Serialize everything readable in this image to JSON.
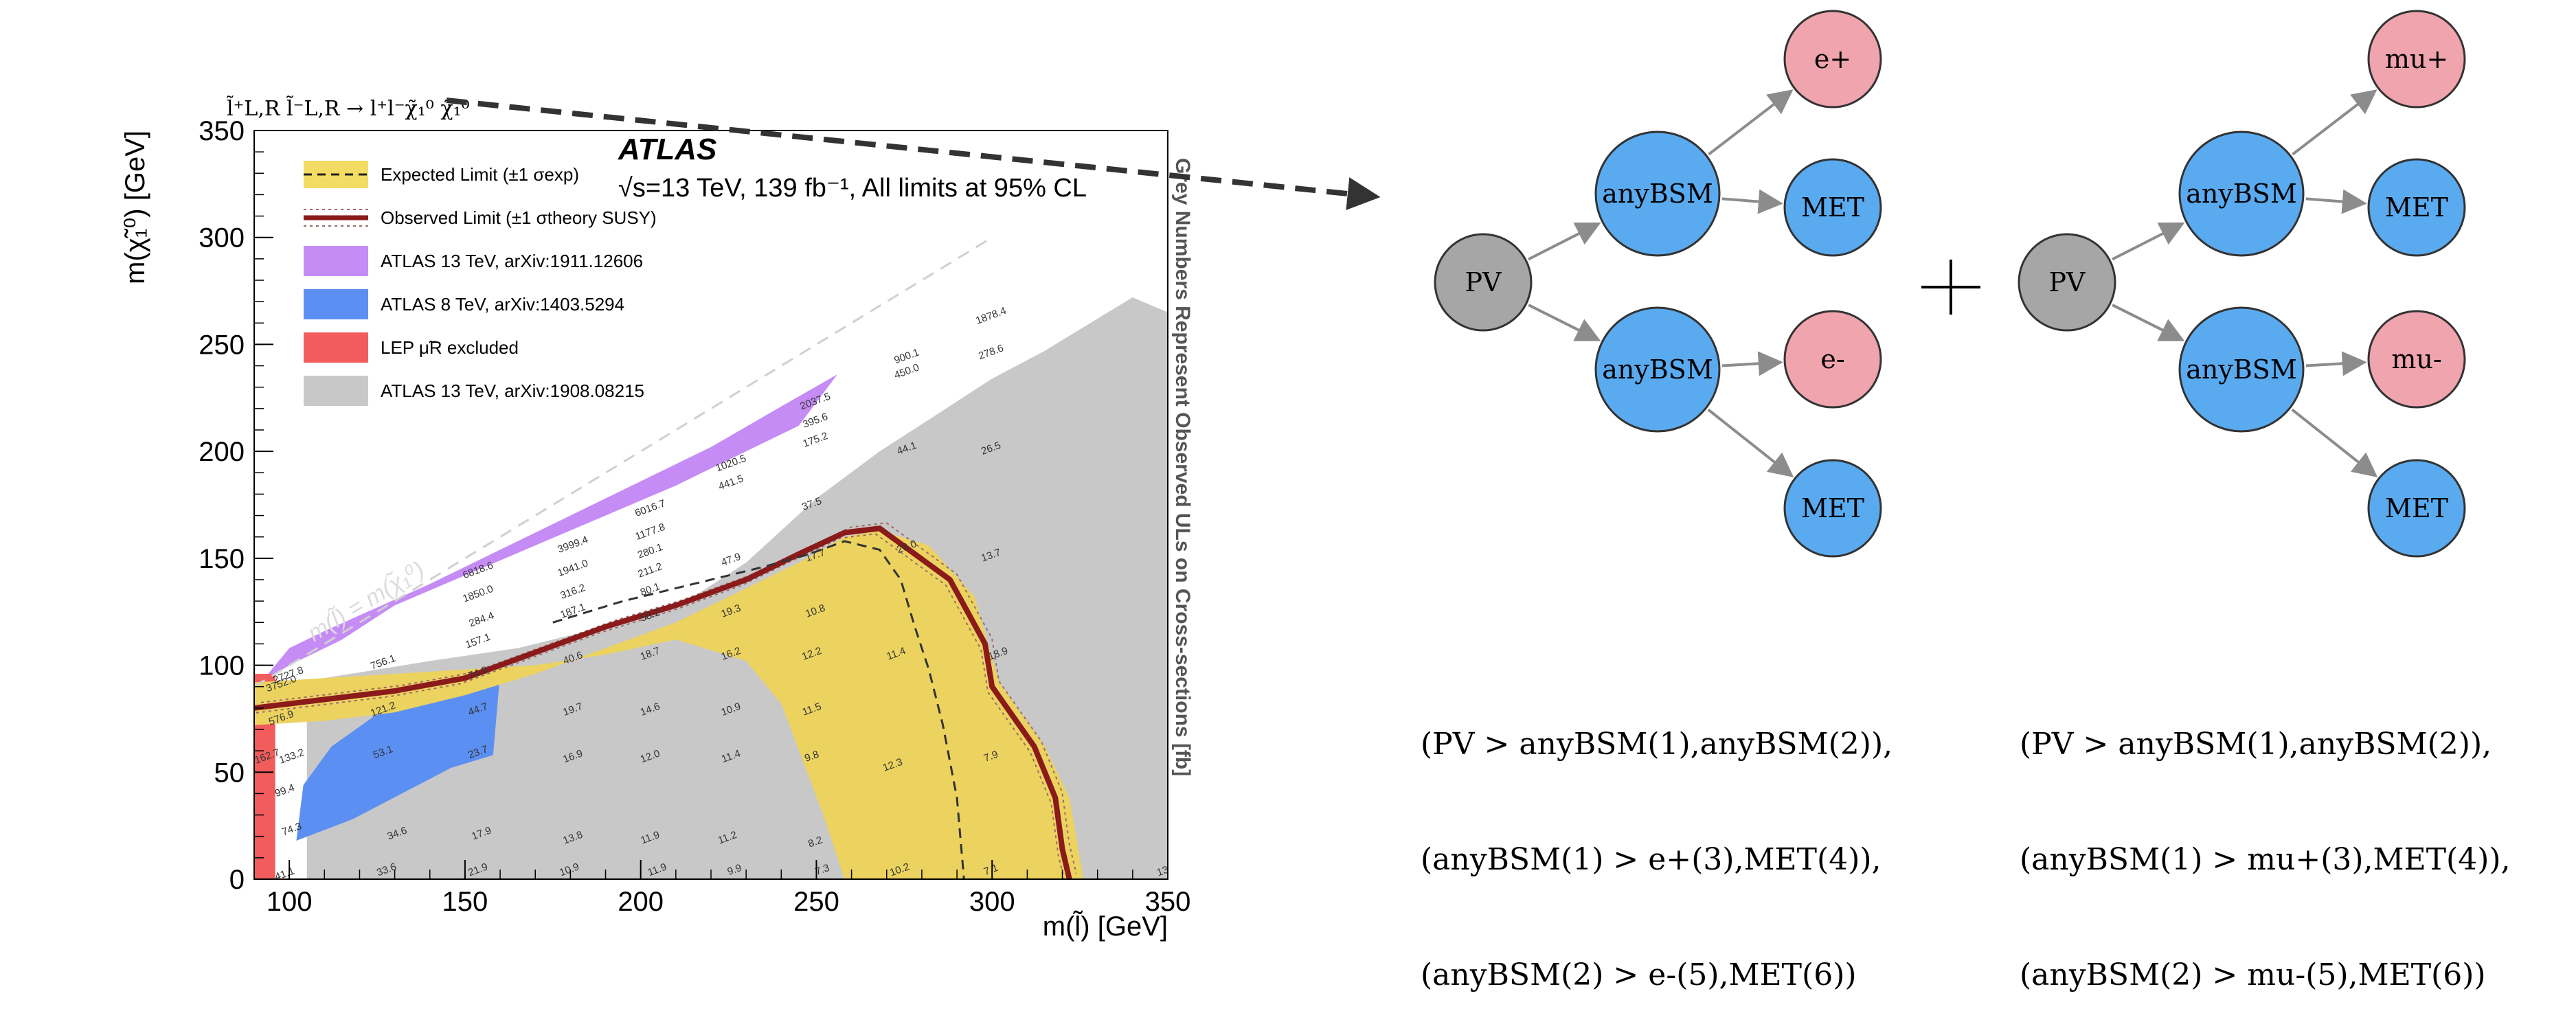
{
  "chart_data": {
    "type": "area",
    "process": "l̃⁺L,R l̃⁻L,R → l⁺l⁻χ̃₁⁰ χ̃₁⁰",
    "experiment": "ATLAS",
    "subtitle": "√s=13 TeV, 139 fb⁻¹, All limits at 95% CL",
    "xlabel": "m(l̃) [GeV]",
    "ylabel": "m(χ̃₁⁰) [GeV]",
    "xlim": [
      90,
      350
    ],
    "ylim": [
      0,
      350
    ],
    "xticks": [
      100,
      150,
      200,
      250,
      300,
      350
    ],
    "yticks": [
      0,
      50,
      100,
      150,
      200,
      250,
      300,
      350
    ],
    "right_label": "Grey Numbers Represent Observed ULs on Cross-sections [fb]",
    "diagonal_label": "m(l̃) = m(χ̃₁⁰)",
    "legend_position": "top-left",
    "legend": [
      {
        "label": "Expected Limit (±1 σexp)",
        "style": "dashed",
        "color": "#222222",
        "band": "#f2dc63"
      },
      {
        "label": "Observed Limit (±1 σtheory SUSY)",
        "style": "solid",
        "color": "#8b1a1a"
      },
      {
        "label": "ATLAS 13 TeV, arXiv:1911.12606",
        "color": "#c58cf5"
      },
      {
        "label": "ATLAS 8 TeV, arXiv:1403.5294",
        "color": "#5b8ff2"
      },
      {
        "label": "LEP μ̃R excluded",
        "color": "#f25c5c"
      },
      {
        "label": "ATLAS 13 TeV, arXiv:1908.08215",
        "color": "#c8c8c8"
      }
    ],
    "regions": [
      {
        "name": "ATLAS 13 TeV, arXiv:1908.08215",
        "color": "#c8c8c8",
        "points": [
          [
            105,
            0
          ],
          [
            350,
            0
          ],
          [
            350,
            265
          ],
          [
            340,
            272
          ],
          [
            330,
            262
          ],
          [
            315,
            247
          ],
          [
            300,
            234
          ],
          [
            285,
            218
          ],
          [
            268,
            200
          ],
          [
            250,
            178
          ],
          [
            230,
            148
          ],
          [
            215,
            132
          ],
          [
            190,
            118
          ],
          [
            165,
            108
          ],
          [
            140,
            102
          ],
          [
            110,
            94
          ],
          [
            105,
            90
          ]
        ]
      },
      {
        "name": "ATLAS 13 TeV, arXiv:1911.12606",
        "color": "#c58cf5",
        "points": [
          [
            92,
            92
          ],
          [
            100,
            108
          ],
          [
            110,
            116
          ],
          [
            125,
            127
          ],
          [
            140,
            138
          ],
          [
            160,
            154
          ],
          [
            180,
            170
          ],
          [
            200,
            186
          ],
          [
            220,
            202
          ],
          [
            240,
            221
          ],
          [
            256,
            236
          ],
          [
            245,
            212
          ],
          [
            230,
            200
          ],
          [
            210,
            184
          ],
          [
            190,
            170
          ],
          [
            170,
            156
          ],
          [
            150,
            142
          ],
          [
            130,
            128
          ],
          [
            115,
            112
          ],
          [
            100,
            100
          ]
        ]
      },
      {
        "name": "ATLAS 8 TeV, arXiv:1403.5294",
        "color": "#5b8ff2",
        "points": [
          [
            102,
            18
          ],
          [
            118,
            28
          ],
          [
            132,
            40
          ],
          [
            146,
            52
          ],
          [
            158,
            58
          ],
          [
            160,
            96
          ],
          [
            150,
            94
          ],
          [
            138,
            86
          ],
          [
            124,
            76
          ],
          [
            112,
            62
          ],
          [
            104,
            44
          ]
        ]
      },
      {
        "name": "LEP μ̃R excluded",
        "color": "#f25c5c",
        "points": [
          [
            90,
            0
          ],
          [
            96,
            0
          ],
          [
            96,
            96
          ],
          [
            90,
            96
          ]
        ]
      },
      {
        "name": "Expected ±1σ band",
        "color": "#ecd35f",
        "points": [
          [
            90,
            72
          ],
          [
            110,
            74
          ],
          [
            130,
            78
          ],
          [
            150,
            86
          ],
          [
            170,
            96
          ],
          [
            190,
            108
          ],
          [
            210,
            120
          ],
          [
            230,
            136
          ],
          [
            245,
            148
          ],
          [
            258,
            160
          ],
          [
            268,
            163
          ],
          [
            282,
            156
          ],
          [
            295,
            132
          ],
          [
            302,
            92
          ],
          [
            315,
            62
          ],
          [
            322,
            38
          ],
          [
            326,
            0
          ],
          [
            258,
            0
          ],
          [
            252,
            30
          ],
          [
            246,
            56
          ],
          [
            240,
            82
          ],
          [
            230,
            102
          ],
          [
            210,
            112
          ],
          [
            190,
            105
          ],
          [
            170,
            100
          ],
          [
            150,
            98
          ],
          [
            130,
            96
          ],
          [
            110,
            94
          ],
          [
            90,
            92
          ]
        ]
      }
    ],
    "series": [
      {
        "name": "Observed Limit (±1 σtheory SUSY)",
        "color": "#8b1a1a",
        "style": "solid",
        "x": [
          90,
          110,
          130,
          150,
          170,
          190,
          210,
          230,
          245,
          258,
          268,
          278,
          288,
          298,
          300,
          312,
          318,
          320,
          322
        ],
        "y": [
          80,
          84,
          88,
          94,
          106,
          118,
          128,
          140,
          152,
          162,
          164,
          152,
          140,
          110,
          90,
          62,
          38,
          14,
          0
        ]
      },
      {
        "name": "Expected Limit (±1 σexp)",
        "color": "#333333",
        "style": "dashed",
        "x": [
          175,
          195,
          215,
          235,
          248,
          258,
          268,
          274,
          278,
          282,
          286,
          290,
          292
        ],
        "y": [
          120,
          130,
          138,
          146,
          152,
          158,
          154,
          140,
          118,
          98,
          72,
          38,
          0
        ]
      }
    ],
    "annotations": [
      {
        "x": 99,
        "y": 1,
        "text": "41.1"
      },
      {
        "x": 128,
        "y": 3,
        "text": "33.6"
      },
      {
        "x": 154,
        "y": 3,
        "text": "21.9"
      },
      {
        "x": 180,
        "y": 3,
        "text": "10.9"
      },
      {
        "x": 205,
        "y": 3,
        "text": "11.9"
      },
      {
        "x": 227,
        "y": 3,
        "text": "9.9"
      },
      {
        "x": 252,
        "y": 3,
        "text": "7.3"
      },
      {
        "x": 274,
        "y": 3,
        "text": "10.2"
      },
      {
        "x": 300,
        "y": 3,
        "text": "7.1"
      },
      {
        "x": 350,
        "y": 3,
        "text": "13.0"
      },
      {
        "x": 101,
        "y": 22,
        "text": "74.3"
      },
      {
        "x": 131,
        "y": 20,
        "text": "34.6"
      },
      {
        "x": 155,
        "y": 20,
        "text": "17.9"
      },
      {
        "x": 181,
        "y": 18,
        "text": "13.8"
      },
      {
        "x": 203,
        "y": 18,
        "text": "11.9"
      },
      {
        "x": 225,
        "y": 18,
        "text": "11.2"
      },
      {
        "x": 250,
        "y": 16,
        "text": "8.2"
      },
      {
        "x": 99,
        "y": 40,
        "text": "99.4"
      },
      {
        "x": 101,
        "y": 56,
        "text": "133.2"
      },
      {
        "x": 127,
        "y": 58,
        "text": "53.1"
      },
      {
        "x": 154,
        "y": 58,
        "text": "23.7"
      },
      {
        "x": 181,
        "y": 56,
        "text": "16.9"
      },
      {
        "x": 203,
        "y": 56,
        "text": "12.0"
      },
      {
        "x": 226,
        "y": 56,
        "text": "11.4"
      },
      {
        "x": 249,
        "y": 56,
        "text": "9.8"
      },
      {
        "x": 272,
        "y": 52,
        "text": "12.3"
      },
      {
        "x": 300,
        "y": 56,
        "text": "7.9"
      },
      {
        "x": 94,
        "y": 56,
        "text": "162.7"
      },
      {
        "x": 98,
        "y": 74,
        "text": "576.9"
      },
      {
        "x": 127,
        "y": 78,
        "text": "121.2"
      },
      {
        "x": 154,
        "y": 78,
        "text": "44.7"
      },
      {
        "x": 181,
        "y": 78,
        "text": "19.7"
      },
      {
        "x": 203,
        "y": 78,
        "text": "14.6"
      },
      {
        "x": 226,
        "y": 78,
        "text": "10.9"
      },
      {
        "x": 249,
        "y": 78,
        "text": "11.5"
      },
      {
        "x": 273,
        "y": 104,
        "text": "11.4"
      },
      {
        "x": 98,
        "y": 90,
        "text": "3752.0"
      },
      {
        "x": 100,
        "y": 94,
        "text": "2727.8"
      },
      {
        "x": 127,
        "y": 100,
        "text": "756.1"
      },
      {
        "x": 154,
        "y": 95,
        "text": "74.8"
      },
      {
        "x": 181,
        "y": 102,
        "text": "40.6"
      },
      {
        "x": 203,
        "y": 104,
        "text": "18.7"
      },
      {
        "x": 226,
        "y": 104,
        "text": "16.2"
      },
      {
        "x": 249,
        "y": 104,
        "text": "12.2"
      },
      {
        "x": 154,
        "y": 110,
        "text": "157.1"
      },
      {
        "x": 155,
        "y": 120,
        "text": "284.4"
      },
      {
        "x": 154,
        "y": 132,
        "text": "1850.0"
      },
      {
        "x": 154,
        "y": 143,
        "text": "6818.6"
      },
      {
        "x": 181,
        "y": 124,
        "text": "187.1"
      },
      {
        "x": 181,
        "y": 133,
        "text": "316.2"
      },
      {
        "x": 181,
        "y": 144,
        "text": "1941.0"
      },
      {
        "x": 181,
        "y": 155,
        "text": "3999.4"
      },
      {
        "x": 203,
        "y": 122,
        "text": "58.2"
      },
      {
        "x": 203,
        "y": 134,
        "text": "80.1"
      },
      {
        "x": 203,
        "y": 143,
        "text": "211.2"
      },
      {
        "x": 203,
        "y": 152,
        "text": "280.1"
      },
      {
        "x": 203,
        "y": 161,
        "text": "1177.8"
      },
      {
        "x": 203,
        "y": 172,
        "text": "6016.7"
      },
      {
        "x": 226,
        "y": 124,
        "text": "19.3"
      },
      {
        "x": 226,
        "y": 148,
        "text": "47.9"
      },
      {
        "x": 226,
        "y": 184,
        "text": "441.5"
      },
      {
        "x": 226,
        "y": 193,
        "text": "1020.5"
      },
      {
        "x": 250,
        "y": 124,
        "text": "10.8"
      },
      {
        "x": 250,
        "y": 150,
        "text": "17.7"
      },
      {
        "x": 249,
        "y": 174,
        "text": "37.5"
      },
      {
        "x": 250,
        "y": 204,
        "text": "175.2"
      },
      {
        "x": 250,
        "y": 213,
        "text": "395.6"
      },
      {
        "x": 250,
        "y": 222,
        "text": "2037.5"
      },
      {
        "x": 276,
        "y": 154,
        "text": "28.0"
      },
      {
        "x": 276,
        "y": 200,
        "text": "44.1"
      },
      {
        "x": 276,
        "y": 236,
        "text": "450.0"
      },
      {
        "x": 276,
        "y": 243,
        "text": "900.1"
      },
      {
        "x": 300,
        "y": 150,
        "text": "13.7"
      },
      {
        "x": 300,
        "y": 200,
        "text": "26.5"
      },
      {
        "x": 300,
        "y": 245,
        "text": "278.6"
      },
      {
        "x": 300,
        "y": 262,
        "text": "1878.4"
      },
      {
        "x": 302,
        "y": 104,
        "text": "18.9"
      }
    ]
  },
  "graphs": [
    {
      "name": "left-graph",
      "nodes": [
        {
          "id": "pv",
          "label": "PV",
          "color": "#a6a6a6"
        },
        {
          "id": "bsm1",
          "label": "anyBSM",
          "color": "#5aaaf0"
        },
        {
          "id": "bsm2",
          "label": "anyBSM",
          "color": "#5aaaf0"
        },
        {
          "id": "ep",
          "label": "e+",
          "color": "#f0a4ae"
        },
        {
          "id": "met1",
          "label": "MET",
          "color": "#5aaaf0"
        },
        {
          "id": "em",
          "label": "e-",
          "color": "#f0a4ae"
        },
        {
          "id": "met2",
          "label": "MET",
          "color": "#5aaaf0"
        }
      ],
      "expression": [
        "(PV > anyBSM(1),anyBSM(2)),",
        "(anyBSM(1) > e+(3),MET(4)),",
        "(anyBSM(2) > e-(5),MET(6))"
      ]
    },
    {
      "name": "right-graph",
      "nodes": [
        {
          "id": "pv",
          "label": "PV",
          "color": "#a6a6a6"
        },
        {
          "id": "bsm1",
          "label": "anyBSM",
          "color": "#5aaaf0"
        },
        {
          "id": "bsm2",
          "label": "anyBSM",
          "color": "#5aaaf0"
        },
        {
          "id": "mup",
          "label": "mu+",
          "color": "#f0a4ae"
        },
        {
          "id": "met1",
          "label": "MET",
          "color": "#5aaaf0"
        },
        {
          "id": "mum",
          "label": "mu-",
          "color": "#f0a4ae"
        },
        {
          "id": "met2",
          "label": "MET",
          "color": "#5aaaf0"
        }
      ],
      "expression": [
        "(PV > anyBSM(1),anyBSM(2)),",
        "(anyBSM(1) > mu+(3),MET(4)),",
        "(anyBSM(2) > mu-(5),MET(6))"
      ]
    }
  ],
  "plus_sign": "+"
}
